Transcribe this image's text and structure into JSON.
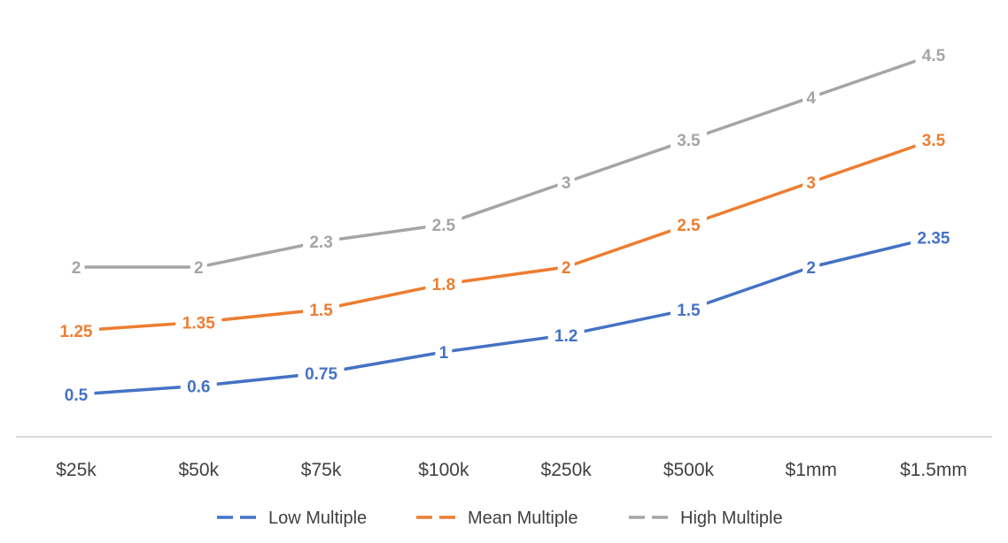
{
  "chart_data": {
    "type": "line",
    "title": "",
    "xlabel": "",
    "ylabel": "",
    "categories": [
      "$25k",
      "$50k",
      "$75k",
      "$100k",
      "$250k",
      "$500k",
      "$1mm",
      "$1.5mm"
    ],
    "ylim": [
      0,
      5
    ],
    "grid": false,
    "legend_position": "bottom",
    "series": [
      {
        "name": "Low Multiple",
        "color": "#4472C4",
        "values": [
          0.5,
          0.6,
          0.75,
          1,
          1.2,
          1.5,
          2,
          2.35
        ],
        "labels": [
          "0.5",
          "0.6",
          "0.75",
          "1",
          "1.2",
          "1.5",
          "2",
          "2.35"
        ]
      },
      {
        "name": "Mean Multiple",
        "color": "#ED7D31",
        "values": [
          1.25,
          1.35,
          1.5,
          1.8,
          2,
          2.5,
          3,
          3.5
        ],
        "labels": [
          "1.25",
          "1.35",
          "1.5",
          "1.8",
          "2",
          "2.5",
          "3",
          "3.5"
        ]
      },
      {
        "name": "High Multiple",
        "color": "#A5A5A5",
        "values": [
          2,
          2,
          2.3,
          2.5,
          3,
          3.5,
          4,
          4.5
        ],
        "labels": [
          "2",
          "2",
          "2.3",
          "2.5",
          "3",
          "3.5",
          "4",
          "4.5"
        ]
      }
    ]
  }
}
